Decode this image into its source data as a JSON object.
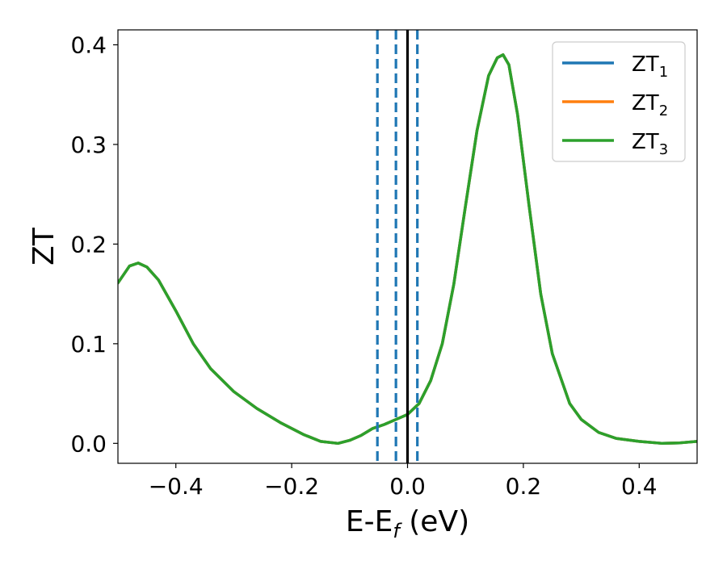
{
  "chart_data": {
    "type": "line",
    "title": "",
    "xlabel": "E-E",
    "xlabel_sub": "f",
    "xlabel_unit": " (eV)",
    "ylabel": "ZT",
    "xlim": [
      -0.5,
      0.5
    ],
    "ylim": [
      -0.02,
      0.415
    ],
    "grid": false,
    "legend_position": "top-right",
    "x_ticks": [
      -0.4,
      -0.2,
      0.0,
      0.2,
      0.4
    ],
    "x_tick_labels": [
      "−0.4",
      "−0.2",
      "0.0",
      "0.2",
      "0.4"
    ],
    "y_ticks": [
      0.0,
      0.1,
      0.2,
      0.3,
      0.4
    ],
    "y_tick_labels": [
      "0.0",
      "0.1",
      "0.2",
      "0.3",
      "0.4"
    ],
    "series": [
      {
        "name": "ZT",
        "name_sub": "1",
        "color": "#1f77b4",
        "x": [
          -0.5,
          -0.48,
          -0.465,
          -0.45,
          -0.43,
          -0.4,
          -0.37,
          -0.34,
          -0.3,
          -0.26,
          -0.22,
          -0.18,
          -0.15,
          -0.12,
          -0.1,
          -0.08,
          -0.06,
          -0.04,
          -0.02,
          0.0,
          0.02,
          0.04,
          0.06,
          0.08,
          0.1,
          0.12,
          0.14,
          0.155,
          0.165,
          0.175,
          0.19,
          0.21,
          0.23,
          0.25,
          0.28,
          0.3,
          0.33,
          0.36,
          0.4,
          0.44,
          0.47,
          0.5
        ],
        "y": [
          0.161,
          0.178,
          0.181,
          0.177,
          0.164,
          0.133,
          0.1,
          0.075,
          0.052,
          0.035,
          0.021,
          0.009,
          0.002,
          0.0,
          0.003,
          0.008,
          0.015,
          0.019,
          0.024,
          0.029,
          0.04,
          0.063,
          0.1,
          0.16,
          0.238,
          0.314,
          0.369,
          0.387,
          0.39,
          0.38,
          0.33,
          0.238,
          0.15,
          0.09,
          0.04,
          0.024,
          0.011,
          0.005,
          0.002,
          0.0,
          0.0005,
          0.002
        ]
      },
      {
        "name": "ZT",
        "name_sub": "2",
        "color": "#ff7f0e",
        "x": [
          -0.5,
          -0.48,
          -0.465,
          -0.45,
          -0.43,
          -0.4,
          -0.37,
          -0.34,
          -0.3,
          -0.26,
          -0.22,
          -0.18,
          -0.15,
          -0.12,
          -0.1,
          -0.08,
          -0.06,
          -0.04,
          -0.02,
          0.0,
          0.02,
          0.04,
          0.06,
          0.08,
          0.1,
          0.12,
          0.14,
          0.155,
          0.165,
          0.175,
          0.19,
          0.21,
          0.23,
          0.25,
          0.28,
          0.3,
          0.33,
          0.36,
          0.4,
          0.44,
          0.47,
          0.5
        ],
        "y": [
          0.161,
          0.178,
          0.181,
          0.177,
          0.164,
          0.133,
          0.1,
          0.075,
          0.052,
          0.035,
          0.021,
          0.009,
          0.002,
          0.0,
          0.003,
          0.008,
          0.015,
          0.019,
          0.024,
          0.029,
          0.04,
          0.063,
          0.1,
          0.16,
          0.238,
          0.314,
          0.369,
          0.387,
          0.39,
          0.38,
          0.33,
          0.238,
          0.15,
          0.09,
          0.04,
          0.024,
          0.011,
          0.005,
          0.002,
          0.0,
          0.0005,
          0.002
        ]
      },
      {
        "name": "ZT",
        "name_sub": "3",
        "color": "#2ca02c",
        "x": [
          -0.5,
          -0.48,
          -0.465,
          -0.45,
          -0.43,
          -0.4,
          -0.37,
          -0.34,
          -0.3,
          -0.26,
          -0.22,
          -0.18,
          -0.15,
          -0.12,
          -0.1,
          -0.08,
          -0.06,
          -0.04,
          -0.02,
          0.0,
          0.02,
          0.04,
          0.06,
          0.08,
          0.1,
          0.12,
          0.14,
          0.155,
          0.165,
          0.175,
          0.19,
          0.21,
          0.23,
          0.25,
          0.28,
          0.3,
          0.33,
          0.36,
          0.4,
          0.44,
          0.47,
          0.5
        ],
        "y": [
          0.161,
          0.178,
          0.181,
          0.177,
          0.164,
          0.133,
          0.1,
          0.075,
          0.052,
          0.035,
          0.021,
          0.009,
          0.002,
          0.0,
          0.003,
          0.008,
          0.015,
          0.019,
          0.024,
          0.029,
          0.04,
          0.063,
          0.1,
          0.16,
          0.238,
          0.314,
          0.369,
          0.387,
          0.39,
          0.38,
          0.33,
          0.238,
          0.15,
          0.09,
          0.04,
          0.024,
          0.011,
          0.005,
          0.002,
          0.0,
          0.0005,
          0.002
        ]
      }
    ],
    "vertical_lines": [
      {
        "x": -0.052,
        "style": "dashed",
        "color": "#1f77b4"
      },
      {
        "x": -0.02,
        "style": "dashed",
        "color": "#1f77b4"
      },
      {
        "x": 0.017,
        "style": "dashed",
        "color": "#1f77b4"
      },
      {
        "x": 0.0,
        "style": "solid",
        "color": "#000000"
      }
    ]
  }
}
